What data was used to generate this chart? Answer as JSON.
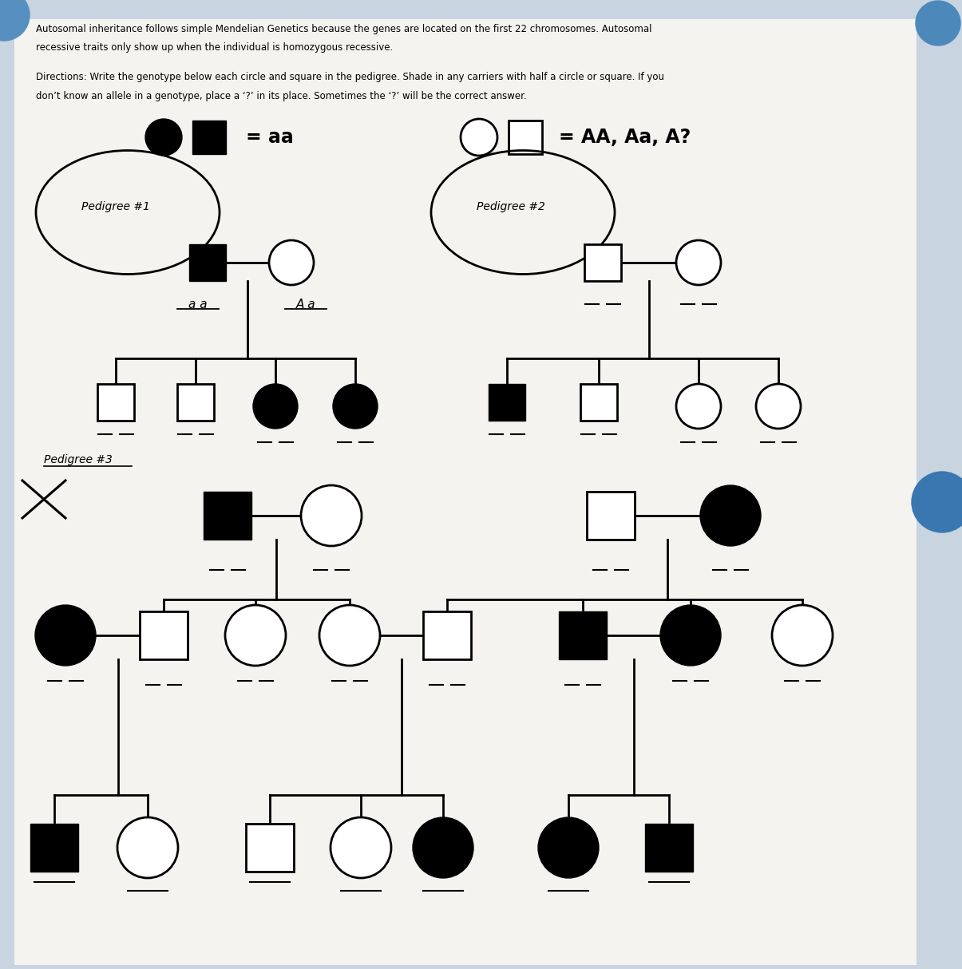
{
  "bg_color": "#c8d4e0",
  "paper_color": "#f0eeeb",
  "title_text1": "Autosomal inheritance follows simple Mendelian Genetics because the genes are located on the first 22 chromosomes. Autosomal",
  "title_text2": "recessive traits only show up when the individual is homozygous recessive.",
  "directions_text1": "Directions: Write the genotype below each circle and square in the pedigree. Shade in any carriers with half a circle or square. If you",
  "directions_text2": "don’t know an allele in a genotype, place a ‘?’ in its place. Sometimes the ‘?’ will be the correct answer.",
  "blue_dot1": [
    11.75,
    11.85,
    0.28
  ],
  "blue_dot2": [
    11.8,
    5.85,
    0.38
  ],
  "blue_dot3": [
    0.05,
    11.95,
    0.32
  ]
}
